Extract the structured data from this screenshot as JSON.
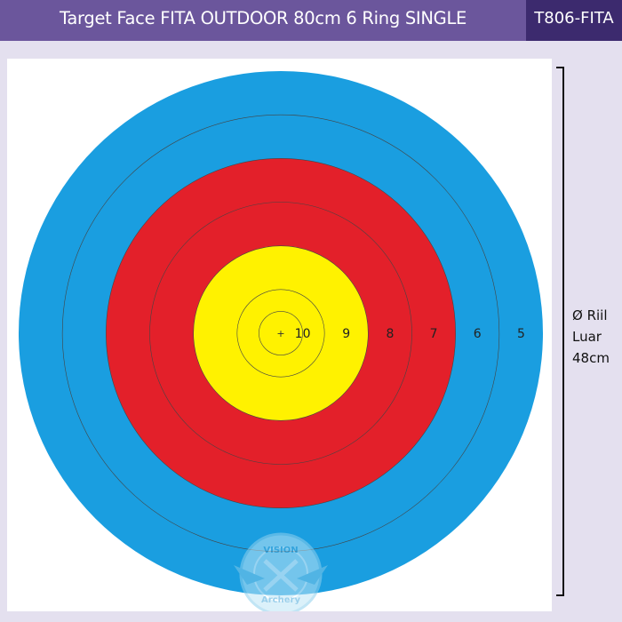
{
  "header": {
    "title": "Target Face FITA OUTDOOR 80cm 6 Ring SINGLE",
    "code": "T806-FITA"
  },
  "target": {
    "rings": [
      {
        "label": "5",
        "color": "#1a9ee0"
      },
      {
        "label": "6",
        "color": "#1a9ee0"
      },
      {
        "label": "7",
        "color": "#e3202a"
      },
      {
        "label": "8",
        "color": "#e3202a"
      },
      {
        "label": "9",
        "color": "#fff200"
      },
      {
        "label": "10",
        "color": "#fff200"
      }
    ],
    "center_mark": "+"
  },
  "dimension": {
    "line1": "Ø Riil",
    "line2": "Luar",
    "line3": "48cm"
  },
  "watermark": {
    "text_top": "VISION",
    "text_bottom": "Archery"
  }
}
